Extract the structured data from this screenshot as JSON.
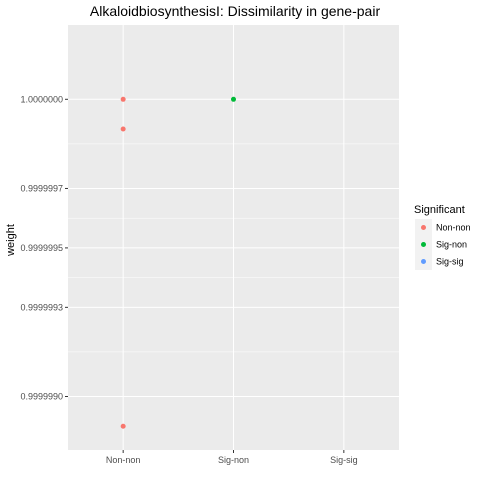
{
  "chart_data": {
    "type": "scatter",
    "title": "AlkaloidbiosynthesisI: Dissimilarity in gene-pair",
    "xlabel": "",
    "ylabel": "weight",
    "categories": [
      "Non-non",
      "Sig-non",
      "Sig-sig"
    ],
    "yticks": [
      0.999999,
      0.9999993,
      0.9999995,
      0.9999997,
      1.0
    ],
    "ytick_labels": [
      "0.9999990",
      "0.9999993",
      "0.9999995",
      "0.9999997",
      "1.0000000"
    ],
    "ylim": [
      0.99999882,
      1.00000025
    ],
    "grid": true,
    "legend": {
      "title": "Significant",
      "position": "right",
      "entries": [
        {
          "label": "Non-non",
          "color": "#F8766D"
        },
        {
          "label": "Sig-non",
          "color": "#00BA38"
        },
        {
          "label": "Sig-sig",
          "color": "#619CFF"
        }
      ]
    },
    "points": [
      {
        "x": "Non-non",
        "y": 1.0,
        "group": "Non-non"
      },
      {
        "x": "Non-non",
        "y": 0.9999999,
        "group": "Non-non"
      },
      {
        "x": "Non-non",
        "y": 0.9999989,
        "group": "Non-non"
      },
      {
        "x": "Sig-non",
        "y": 1.0,
        "group": "Sig-non"
      }
    ],
    "colors": {
      "panel_bg": "#EBEBEB",
      "grid": "#FFFFFF",
      "Non-non": "#F8766D",
      "Sig-non": "#00BA38",
      "Sig-sig": "#619CFF"
    }
  }
}
